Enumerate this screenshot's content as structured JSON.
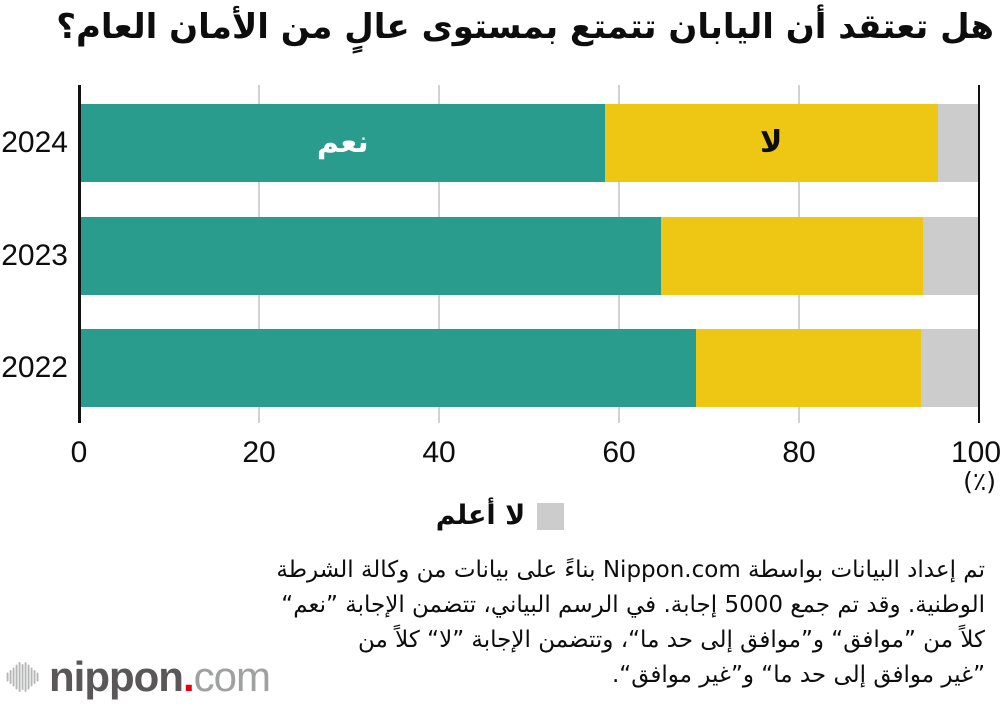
{
  "title": "هل تعتقد أن اليابان تتمتع بمستوى عالٍ من الأمان العام؟",
  "chart_data": {
    "type": "bar",
    "orientation": "horizontal",
    "stacked": true,
    "categories": [
      "2024",
      "2023",
      "2022"
    ],
    "series": [
      {
        "name": "نعم",
        "color": "#2a9c8e",
        "values": [
          58.3,
          64.6,
          68.5
        ]
      },
      {
        "name": "لا",
        "color": "#eec614",
        "values": [
          37.1,
          29.2,
          25.0
        ]
      },
      {
        "name": "لا أعلم",
        "color": "#cccccc",
        "values": [
          4.6,
          6.2,
          6.5
        ]
      }
    ],
    "xlim": [
      0,
      100
    ],
    "ticks": [
      0,
      20,
      40,
      60,
      80,
      100
    ],
    "unit": "(٪)",
    "grid": true,
    "legend": {
      "label": "لا أعلم",
      "color": "#cccccc",
      "position": "bottom-center"
    }
  },
  "footer": {
    "lines": [
      "تم إعداد البيانات بواسطة Nippon.com بناءً على بيانات من وكالة الشرطة",
      "الوطنية. وقد تم جمع 5000 إجابة. في الرسم البياني، تتضمن الإجابة ”نعم“",
      "كلاً من ”موافق“ و”موافق إلى حد ما“، وتتضمن الإجابة ”لا“ كلاً من",
      "”غير موافق إلى حد ما“ و”غير موافق“."
    ]
  },
  "logo": {
    "name": "nippon",
    "dot": ".",
    "tld": "com",
    "colors": {
      "wordmark": "#595757",
      "dot": "#e60012",
      "tld": "#9fa0a0",
      "wave": "#b5b6b6"
    }
  }
}
